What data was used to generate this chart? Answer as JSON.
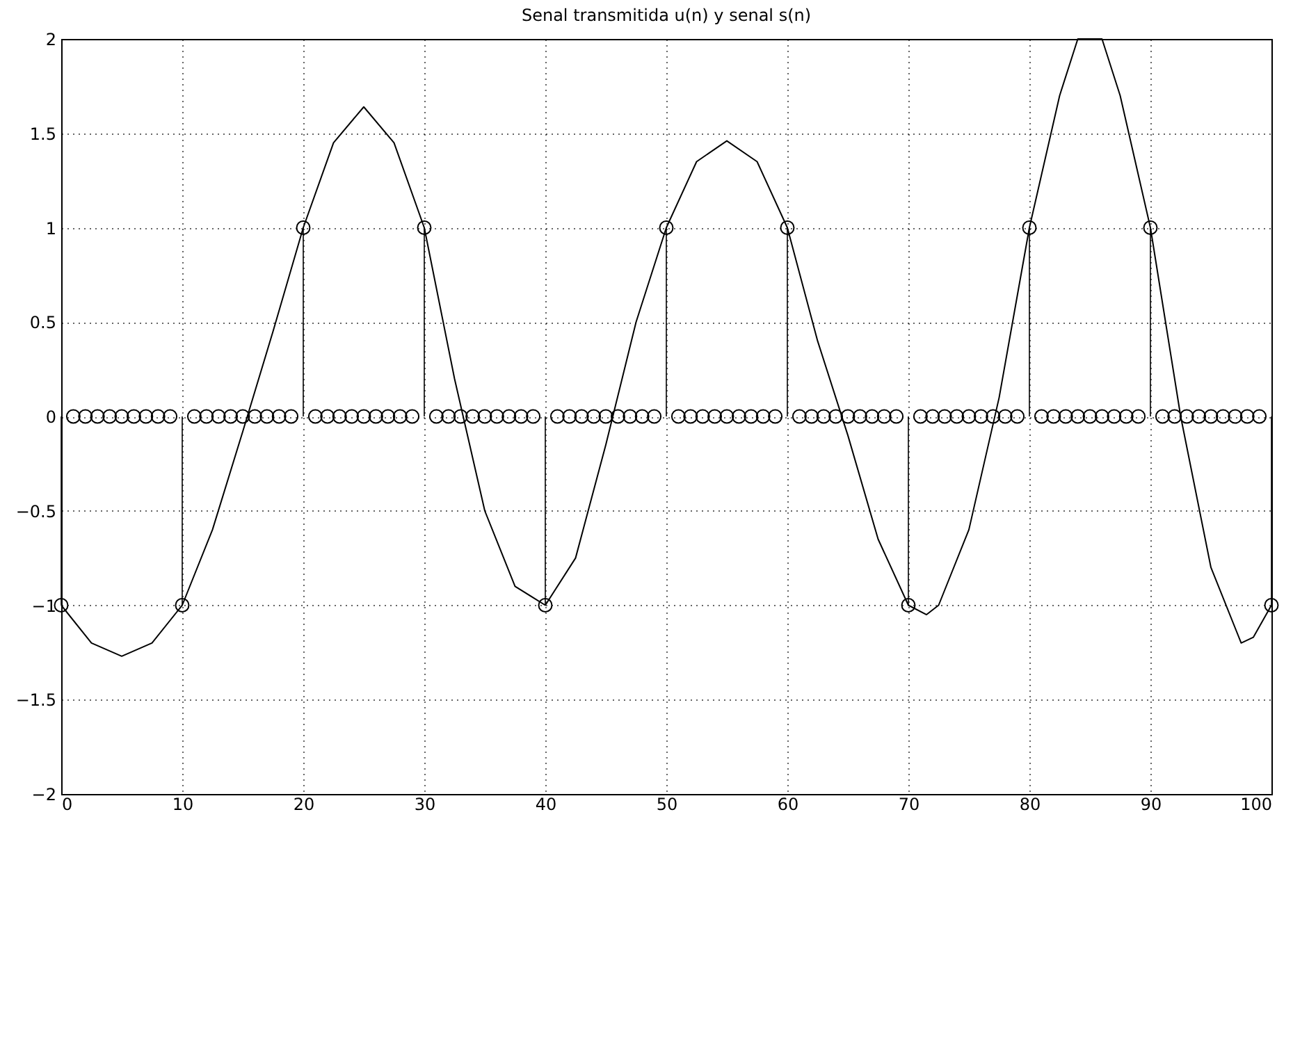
{
  "chart_data": {
    "type": "lollipop",
    "title": "Senal transmitida u(n) y senal s(n)",
    "xlim": [
      0,
      100
    ],
    "xticks": [
      0,
      10,
      20,
      30,
      40,
      50,
      60,
      70,
      80,
      90,
      100
    ],
    "ylim": [
      -2,
      2
    ],
    "yticks": [
      -2,
      -1.5,
      -1,
      -0.5,
      0,
      0.5,
      1,
      1.5,
      2
    ],
    "grid": true,
    "series": [
      {
        "color": "#000000",
        "marker": "circle",
        "x": [
          0,
          1,
          2,
          3,
          4,
          5,
          6,
          7,
          8,
          9,
          10,
          11,
          12,
          13,
          14,
          15,
          16,
          17,
          18,
          19,
          20,
          21,
          22,
          23,
          24,
          25,
          26,
          27,
          28,
          29,
          30,
          31,
          32,
          33,
          34,
          35,
          36,
          37,
          38,
          39,
          40,
          41,
          42,
          43,
          44,
          45,
          46,
          47,
          48,
          49,
          50,
          51,
          52,
          53,
          54,
          55,
          56,
          57,
          58,
          59,
          60,
          61,
          62,
          63,
          64,
          65,
          66,
          67,
          68,
          69,
          70,
          71,
          72,
          73,
          74,
          75,
          76,
          77,
          78,
          79,
          80,
          81,
          82,
          83,
          84,
          85,
          86,
          87,
          88,
          89,
          90,
          91,
          92,
          93,
          94,
          95,
          96,
          97,
          98,
          99,
          100
        ],
        "values": [
          -1,
          0,
          0,
          0,
          0,
          0,
          0,
          0,
          0,
          0,
          -1,
          0,
          0,
          0,
          0,
          0,
          0,
          0,
          0,
          0,
          1,
          0,
          0,
          0,
          0,
          0,
          0,
          0,
          0,
          0,
          1,
          0,
          0,
          0,
          0,
          0,
          0,
          0,
          0,
          0,
          -1,
          0,
          0,
          0,
          0,
          0,
          0,
          0,
          0,
          0,
          1,
          0,
          0,
          0,
          0,
          0,
          0,
          0,
          0,
          0,
          1,
          0,
          0,
          0,
          0,
          0,
          0,
          0,
          0,
          0,
          -1,
          0,
          0,
          0,
          0,
          0,
          0,
          0,
          0,
          0,
          1,
          0,
          0,
          0,
          0,
          0,
          0,
          0,
          0,
          0,
          1,
          0,
          0,
          0,
          0,
          0,
          0,
          0,
          0,
          0,
          -1
        ]
      },
      {
        "type": "line",
        "color": "#000000",
        "marker": "none",
        "line_style": "solid",
        "x": [
          0,
          2.5,
          5,
          7.5,
          10,
          12.5,
          15,
          17.5,
          20,
          22.5,
          25,
          27.5,
          30,
          32.5,
          35,
          37.5,
          40,
          42.5,
          45,
          47.5,
          50,
          52.5,
          55,
          57.5,
          60,
          62.5,
          65,
          67.5,
          70,
          71.5,
          72.5,
          75,
          77.5,
          80,
          82.5,
          84,
          85,
          86,
          87.5,
          90,
          92.5,
          95,
          97.5,
          98.5,
          100
        ],
        "values": [
          -1,
          -1.2,
          -1.27,
          -1.2,
          -1,
          -0.6,
          -0.08,
          0.45,
          1,
          1.45,
          1.64,
          1.45,
          1,
          0.2,
          -0.5,
          -0.9,
          -1,
          -0.75,
          -0.15,
          0.5,
          1,
          1.35,
          1.46,
          1.35,
          1,
          0.4,
          -0.1,
          -0.65,
          -1,
          -1.05,
          -1.0,
          -0.6,
          0.1,
          1,
          1.7,
          2,
          2,
          2,
          1.7,
          1,
          0,
          -0.8,
          -1.2,
          -1.17,
          -1
        ]
      }
    ]
  }
}
